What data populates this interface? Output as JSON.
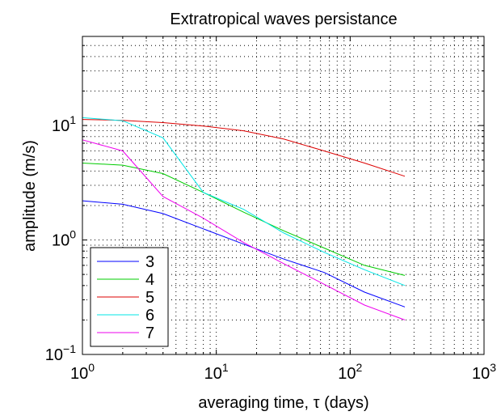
{
  "chart_data": {
    "type": "line",
    "title": "Extratropical waves persistance",
    "xlabel": "averaging time, τ (days)",
    "ylabel": "amplitude (m/s)",
    "xscale": "log",
    "yscale": "log",
    "xlim": [
      1,
      1000
    ],
    "ylim": [
      0.1,
      60
    ],
    "grid": true,
    "legend_position": "bottom-left",
    "x_ticks": [
      {
        "value": 1,
        "base": "10",
        "exp": "0"
      },
      {
        "value": 10,
        "base": "10",
        "exp": "1"
      },
      {
        "value": 100,
        "base": "10",
        "exp": "2"
      },
      {
        "value": 1000,
        "base": "10",
        "exp": "3"
      }
    ],
    "y_ticks": [
      {
        "value": 0.1,
        "base": "10",
        "exp": "−1"
      },
      {
        "value": 1,
        "base": "10",
        "exp": "0"
      },
      {
        "value": 10,
        "base": "10",
        "exp": "1"
      }
    ],
    "x": [
      1,
      2,
      4,
      8,
      16,
      32,
      64,
      128,
      256
    ],
    "series": [
      {
        "name": "3",
        "color": "#0000ff",
        "values": [
          2.2,
          2.05,
          1.7,
          1.25,
          0.92,
          0.68,
          0.52,
          0.35,
          0.26
        ]
      },
      {
        "name": "4",
        "color": "#00cc00",
        "values": [
          4.7,
          4.5,
          3.8,
          2.6,
          1.75,
          1.2,
          0.85,
          0.6,
          0.49
        ]
      },
      {
        "name": "5",
        "color": "#dd0000",
        "values": [
          11.3,
          11.1,
          10.6,
          9.9,
          9.0,
          7.6,
          6.0,
          4.7,
          3.6
        ]
      },
      {
        "name": "6",
        "color": "#00e5e5",
        "values": [
          11.7,
          11.0,
          7.8,
          2.6,
          1.85,
          1.15,
          0.78,
          0.55,
          0.4
        ]
      },
      {
        "name": "7",
        "color": "#ee00ee",
        "values": [
          7.5,
          6.0,
          2.4,
          1.55,
          0.95,
          0.62,
          0.41,
          0.27,
          0.2
        ]
      }
    ]
  }
}
